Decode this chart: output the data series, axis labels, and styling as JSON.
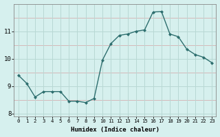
{
  "xlabel": "Humidex (Indice chaleur)",
  "x": [
    0,
    1,
    2,
    3,
    4,
    5,
    6,
    7,
    8,
    9,
    10,
    11,
    12,
    13,
    14,
    15,
    16,
    17,
    18,
    19,
    20,
    21,
    22,
    23
  ],
  "y": [
    9.4,
    9.1,
    8.6,
    8.8,
    8.8,
    8.8,
    8.45,
    8.45,
    8.4,
    8.55,
    9.95,
    10.55,
    10.85,
    10.9,
    11.0,
    11.05,
    11.7,
    11.72,
    10.9,
    10.8,
    10.35,
    10.15,
    10.05,
    9.85
  ],
  "line_color": "#2d6e6e",
  "marker_color": "#2d6e6e",
  "bg_color": "#d6f0ee",
  "grid_main_color": "#b8d8d4",
  "grid_minor_color": "#d4b8b8",
  "ylim": [
    7.9,
    12.0
  ],
  "xlim": [
    -0.5,
    23.5
  ],
  "yticks": [
    8,
    9,
    10,
    11
  ],
  "xticks": [
    0,
    1,
    2,
    3,
    4,
    5,
    6,
    7,
    8,
    9,
    10,
    11,
    12,
    13,
    14,
    15,
    16,
    17,
    18,
    19,
    20,
    21,
    22,
    23
  ]
}
